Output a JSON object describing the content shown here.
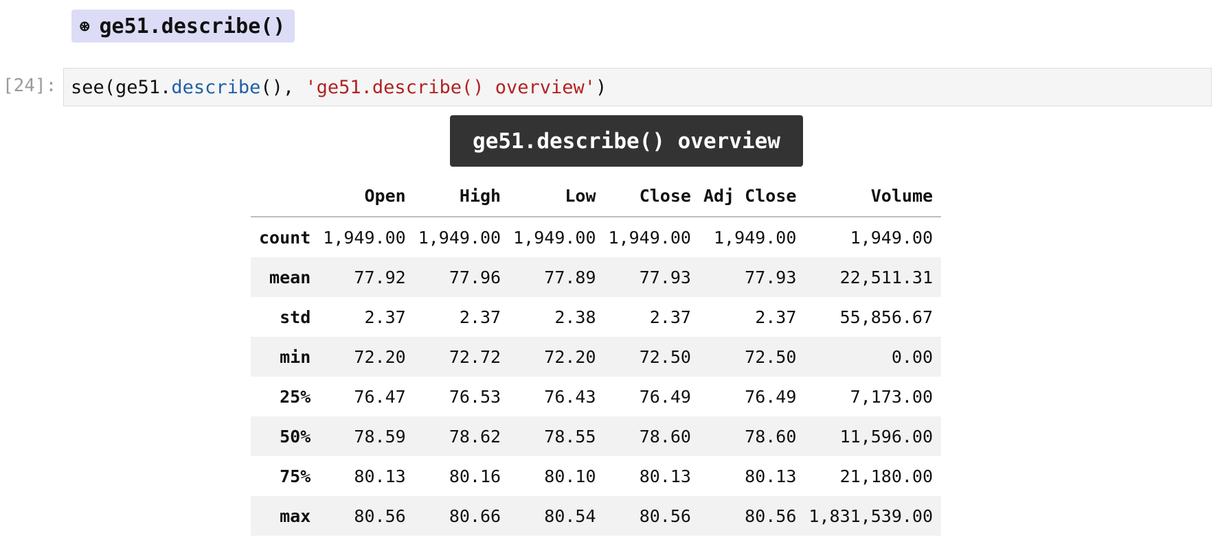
{
  "heading": {
    "bullet": "⊛",
    "text": "ge51.describe()"
  },
  "cell": {
    "prompt": "[24]:",
    "code_parts": [
      {
        "text": "see(ge51.",
        "kind": "plain"
      },
      {
        "text": "describe",
        "kind": "fn"
      },
      {
        "text": "(), ",
        "kind": "plain"
      },
      {
        "text": "'ge51.describe() overview'",
        "kind": "str"
      },
      {
        "text": ")",
        "kind": "plain"
      }
    ]
  },
  "output": {
    "caption": "ge51.describe() overview",
    "columns": [
      "",
      "Open",
      "High",
      "Low",
      "Close",
      "Adj Close",
      "Volume"
    ],
    "rows": [
      {
        "label": "count",
        "values": [
          "1,949.00",
          "1,949.00",
          "1,949.00",
          "1,949.00",
          "1,949.00",
          "1,949.00"
        ]
      },
      {
        "label": "mean",
        "values": [
          "77.92",
          "77.96",
          "77.89",
          "77.93",
          "77.93",
          "22,511.31"
        ]
      },
      {
        "label": "std",
        "values": [
          "2.37",
          "2.37",
          "2.38",
          "2.37",
          "2.37",
          "55,856.67"
        ]
      },
      {
        "label": "min",
        "values": [
          "72.20",
          "72.72",
          "72.20",
          "72.50",
          "72.50",
          "0.00"
        ]
      },
      {
        "label": "25%",
        "values": [
          "76.47",
          "76.53",
          "76.43",
          "76.49",
          "76.49",
          "7,173.00"
        ]
      },
      {
        "label": "50%",
        "values": [
          "78.59",
          "78.62",
          "78.55",
          "78.60",
          "78.60",
          "11,596.00"
        ]
      },
      {
        "label": "75%",
        "values": [
          "80.13",
          "80.16",
          "80.10",
          "80.13",
          "80.13",
          "21,180.00"
        ]
      },
      {
        "label": "max",
        "values": [
          "80.56",
          "80.66",
          "80.54",
          "80.56",
          "80.56",
          "1,831,539.00"
        ]
      }
    ]
  },
  "colors": {
    "heading_bg": "#dcdcf7",
    "code_bg": "#f5f5f5",
    "fn_token": "#1f5fa8",
    "string_token": "#b22222",
    "caption_bg": "#333333",
    "stripe_bg": "#f2f2f2"
  }
}
